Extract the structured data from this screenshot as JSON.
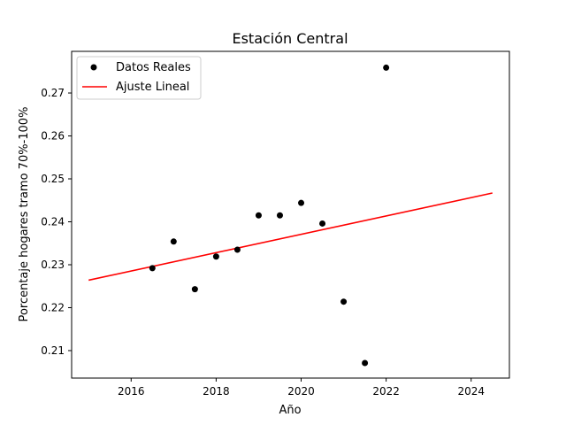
{
  "chart_data": {
    "type": "scatter",
    "title": "Estación Central",
    "xlabel": "Año",
    "ylabel": "Porcentaje hogares tramo 70%-100%",
    "xlim": [
      2014.6,
      2024.9
    ],
    "ylim": [
      0.2036,
      0.2797
    ],
    "x_ticks": [
      2016,
      2018,
      2020,
      2022,
      2024
    ],
    "y_ticks": [
      0.21,
      0.22,
      0.23,
      0.24,
      0.25,
      0.26,
      0.27
    ],
    "legend": {
      "position": "top-left",
      "entries": [
        {
          "label": "Datos Reales",
          "marker": "dot",
          "color": "#000000"
        },
        {
          "label": "Ajuste Lineal",
          "marker": "line",
          "color": "#ff0000"
        }
      ]
    },
    "series": [
      {
        "name": "Datos Reales",
        "kind": "scatter",
        "color": "#000000",
        "points": [
          {
            "x": 2016.5,
            "y": 0.2292
          },
          {
            "x": 2017.0,
            "y": 0.2354
          },
          {
            "x": 2017.5,
            "y": 0.2243
          },
          {
            "x": 2018.0,
            "y": 0.2319
          },
          {
            "x": 2018.5,
            "y": 0.2335
          },
          {
            "x": 2019.0,
            "y": 0.2415
          },
          {
            "x": 2019.5,
            "y": 0.2415
          },
          {
            "x": 2020.0,
            "y": 0.2444
          },
          {
            "x": 2020.5,
            "y": 0.2396
          },
          {
            "x": 2021.0,
            "y": 0.2214
          },
          {
            "x": 2021.5,
            "y": 0.2071
          },
          {
            "x": 2022.0,
            "y": 0.2759
          }
        ]
      },
      {
        "name": "Ajuste Lineal",
        "kind": "line",
        "color": "#ff0000",
        "points": [
          {
            "x": 2015.0,
            "y": 0.2264
          },
          {
            "x": 2024.5,
            "y": 0.2467
          }
        ]
      }
    ]
  }
}
